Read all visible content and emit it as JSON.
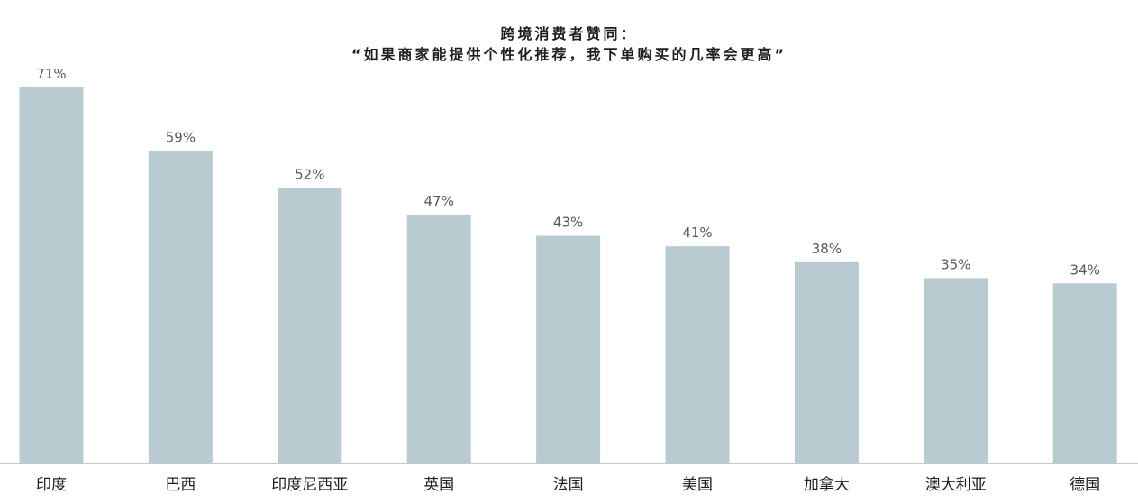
{
  "chart_data": {
    "type": "bar",
    "title_lines": [
      "跨境消费者赞同：",
      "“如果商家能提供个性化推荐，我下单购买的几率会更高”"
    ],
    "categories": [
      "印度",
      "巴西",
      "印度尼西亚",
      "英国",
      "法国",
      "美国",
      "加拿大",
      "澳大利亚",
      "德国"
    ],
    "values": [
      71,
      59,
      52,
      47,
      43,
      41,
      38,
      35,
      34
    ],
    "value_labels": [
      "71%",
      "59%",
      "52%",
      "47%",
      "43%",
      "41%",
      "38%",
      "35%",
      "34%"
    ],
    "unit": "%",
    "ylim": [
      0,
      71
    ],
    "grid": false,
    "legend": "none",
    "colors": {
      "bar": "#b8cbd1",
      "axis": "#c8c8c8",
      "value_label": "#595959",
      "category_label": "#1f1f1f",
      "title": "#1f1f1f"
    }
  }
}
